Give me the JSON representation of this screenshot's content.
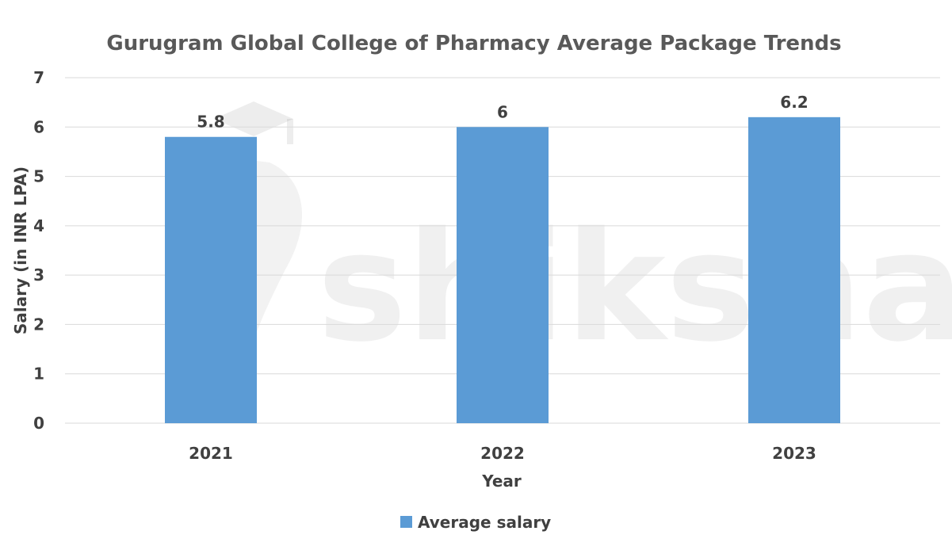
{
  "watermark": {
    "text": "shiksha"
  },
  "chart_data": {
    "type": "bar",
    "title": "Gurugram Global College of Pharmacy Average Package Trends",
    "xlabel": "Year",
    "ylabel": "Salary (in INR LPA)",
    "categories": [
      "2021",
      "2022",
      "2023"
    ],
    "series": [
      {
        "name": "Average salary",
        "values": [
          5.8,
          6,
          6.2
        ],
        "color": "#5b9bd5"
      }
    ],
    "data_labels": [
      "5.8",
      "6",
      "6.2"
    ],
    "ylim": [
      0,
      7
    ],
    "yticks": [
      "0",
      "1",
      "2",
      "3",
      "4",
      "5",
      "6",
      "7"
    ],
    "grid": true,
    "legend_position": "bottom"
  }
}
